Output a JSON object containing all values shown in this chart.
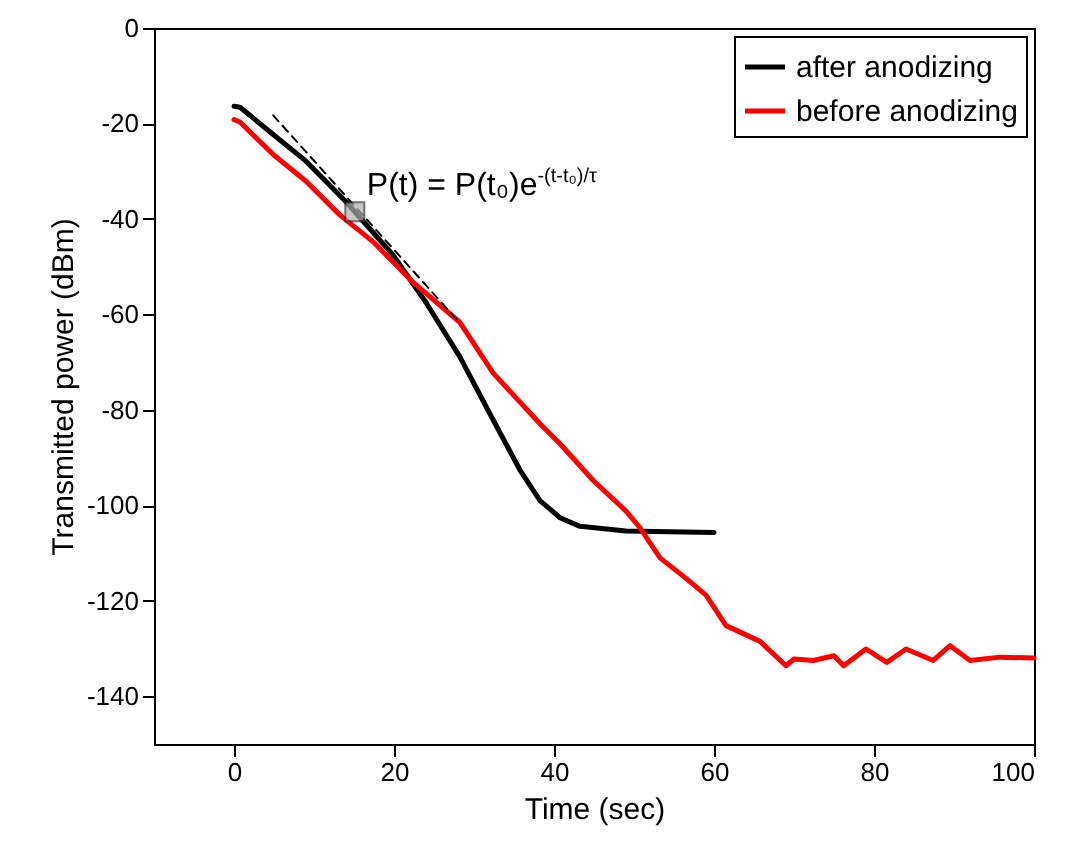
{
  "chart_data": {
    "type": "line",
    "xlabel": "Time (sec)",
    "ylabel": "Transmitted power (dBm)",
    "xlim": [
      -10,
      100
    ],
    "xticks": [
      0,
      20,
      40,
      60,
      80,
      100
    ],
    "ylim": [
      -150,
      0
    ],
    "yticks": [
      0,
      -20,
      -40,
      -60,
      -80,
      -100,
      -120,
      -140
    ],
    "grid": false,
    "legend": "top right",
    "line_style": "solid",
    "marker": "none",
    "annotations": [
      {
        "text": "P(t) = P(t₀)e$^{-(t-t₀)/τ}$",
        "x": 15.1,
        "y": -38.5
      }
    ],
    "series": [
      {
        "name": "after anodizing",
        "color": "#000000",
        "x": [
          0,
          0.75,
          4.9,
          9,
          14,
          15.1,
          19.9,
          24,
          28.2,
          32.2,
          35.75,
          38.25,
          40.75,
          43.25,
          49,
          60
        ],
        "values": [
          -16.4,
          -16.6,
          -22.3,
          -27.9,
          -36.4,
          -38.5,
          -47.6,
          -57.5,
          -68.8,
          -81.5,
          -92.6,
          -99,
          -102.6,
          -104.4,
          -105.4,
          -105.7
        ]
      },
      {
        "name": "before anodizing",
        "color": "#ff0000",
        "x": [
          0,
          0.75,
          4.9,
          9,
          13.25,
          17.4,
          22.4,
          28.25,
          32.4,
          38.25,
          40.75,
          44.9,
          49,
          50.75,
          53.25,
          56.5,
          59,
          61.5,
          65.75,
          69,
          70,
          72.4,
          75,
          76.2,
          79,
          81.6,
          84,
          87.4,
          89.5,
          92,
          95.75,
          100
        ],
        "values": [
          -19.2,
          -19.7,
          -26.5,
          -32.1,
          -39.2,
          -44.8,
          -53.3,
          -61.7,
          -72.3,
          -82.9,
          -87.1,
          -94.8,
          -101.2,
          -104.7,
          -111,
          -115.3,
          -118.8,
          -125.2,
          -128.5,
          -133.6,
          -132.2,
          -132.5,
          -131.5,
          -133.6,
          -130.1,
          -132.9,
          -130.1,
          -132.5,
          -129.4,
          -132.5,
          -131.8,
          -132
        ]
      },
      {
        "type": "line",
        "color": "#000000",
        "line_style": "dashed",
        "x": [
          4.9,
          27.8
        ],
        "values": [
          -18.3,
          -61
        ]
      },
      {
        "type": "scatter",
        "color": "#b0b0b0",
        "marker": "square",
        "x": [
          15.1
        ],
        "values": [
          -38.5
        ]
      }
    ]
  }
}
